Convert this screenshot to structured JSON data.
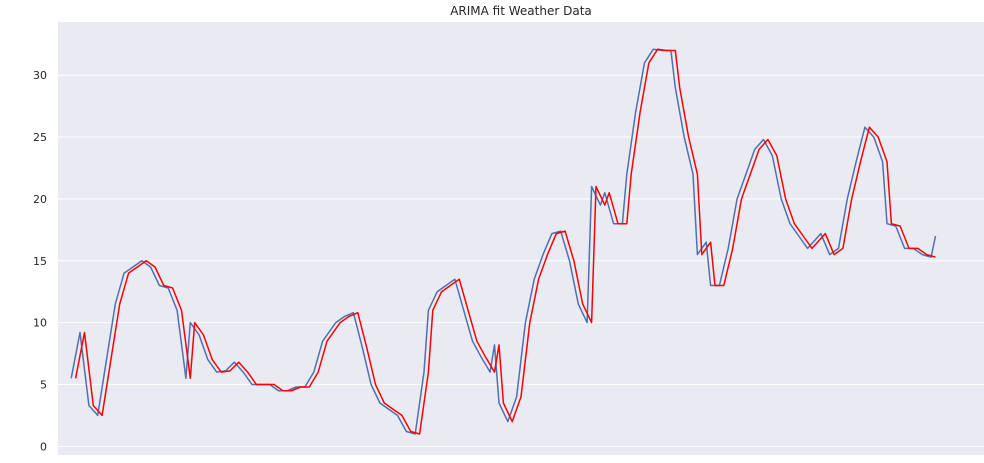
{
  "chart_data": {
    "type": "line",
    "title": "ARIMA fit Weather Data",
    "xlabel": "",
    "ylabel": "",
    "xlim": [
      -3,
      207
    ],
    "ylim": [
      -0.7,
      34.3
    ],
    "yticks": [
      0,
      5,
      10,
      15,
      20,
      25,
      30
    ],
    "grid": "horizontal",
    "background": "#EAEAF2",
    "series": [
      {
        "color": "#4C72B0",
        "x": [
          0,
          2,
          4,
          6,
          8,
          10,
          12,
          14,
          16,
          18,
          20,
          22,
          24,
          26,
          27,
          29,
          31,
          33,
          35,
          37,
          39,
          41,
          43,
          45,
          47,
          49,
          51,
          53,
          55,
          57,
          60,
          62,
          64,
          66,
          68,
          70,
          72,
          74,
          76,
          78,
          80,
          81,
          83,
          85,
          87,
          89,
          91,
          93,
          95,
          96,
          97,
          99,
          101,
          103,
          105,
          107,
          109,
          111,
          113,
          115,
          117,
          118,
          120,
          121,
          123,
          125,
          126,
          128,
          130,
          132,
          134,
          136,
          137,
          139,
          141,
          142,
          144,
          145,
          147,
          149,
          151,
          153,
          155,
          157,
          159,
          161,
          163,
          165,
          167,
          170,
          172,
          174,
          176,
          178,
          180,
          182,
          184,
          185,
          187,
          189,
          191,
          193,
          195,
          196
        ],
        "y": [
          5.5,
          9.2,
          3.3,
          2.5,
          7,
          11.5,
          14,
          14.5,
          15,
          14.5,
          13,
          12.8,
          11,
          5.5,
          10,
          9,
          7,
          6,
          6.1,
          6.8,
          6,
          5,
          5,
          5,
          4.5,
          4.5,
          4.8,
          4.8,
          6,
          8.5,
          10,
          10.5,
          10.8,
          8,
          5,
          3.5,
          3,
          2.5,
          1.2,
          1,
          6,
          11,
          12.5,
          13,
          13.5,
          11,
          8.5,
          7.2,
          6,
          8.2,
          3.5,
          2,
          4,
          10,
          13.5,
          15.5,
          17.2,
          17.4,
          15,
          11.5,
          10,
          21,
          19.5,
          20.5,
          18,
          18,
          22,
          27,
          31,
          32.1,
          32,
          32,
          29,
          25,
          22,
          15.5,
          16.5,
          13,
          13,
          16,
          20,
          22,
          24,
          24.8,
          23.5,
          20,
          18,
          17,
          16,
          17.2,
          15.5,
          16,
          20,
          23,
          25.8,
          25,
          23,
          18,
          17.8,
          16,
          16,
          15.5,
          15.3,
          17
        ]
      },
      {
        "color": "#FF0000",
        "x": [
          1,
          3,
          5,
          7,
          9,
          11,
          13,
          15,
          17,
          19,
          21,
          23,
          25,
          27,
          28,
          30,
          32,
          34,
          36,
          38,
          40,
          42,
          44,
          46,
          48,
          50,
          52,
          54,
          56,
          58,
          61,
          63,
          65,
          67,
          69,
          71,
          73,
          75,
          77,
          79,
          81,
          82,
          84,
          86,
          88,
          90,
          92,
          94,
          96,
          97,
          98,
          100,
          102,
          104,
          106,
          108,
          110,
          112,
          114,
          116,
          118,
          119,
          121,
          122,
          124,
          126,
          127,
          129,
          131,
          133,
          135,
          137,
          138,
          140,
          142,
          143,
          145,
          146,
          148,
          150,
          152,
          154,
          156,
          158,
          160,
          162,
          164,
          166,
          168,
          171,
          173,
          175,
          177,
          179,
          181,
          183,
          185,
          186,
          188,
          190,
          192,
          194,
          196
        ],
        "y": [
          5.5,
          9.2,
          3.3,
          2.5,
          7,
          11.5,
          14,
          14.5,
          15,
          14.5,
          13,
          12.8,
          11,
          5.5,
          10,
          9,
          7,
          6,
          6.1,
          6.8,
          6,
          5,
          5,
          5,
          4.5,
          4.5,
          4.8,
          4.8,
          6,
          8.5,
          10,
          10.5,
          10.8,
          8,
          5,
          3.5,
          3,
          2.5,
          1.2,
          1,
          6,
          11,
          12.5,
          13,
          13.5,
          11,
          8.5,
          7.2,
          6,
          8.2,
          3.5,
          2,
          4,
          10,
          13.5,
          15.5,
          17.2,
          17.4,
          15,
          11.5,
          10,
          21,
          19.5,
          20.5,
          18,
          18,
          22,
          27,
          31,
          32.1,
          32,
          32,
          29,
          25,
          22,
          15.5,
          16.5,
          13,
          13,
          16,
          20,
          22,
          24,
          24.8,
          23.5,
          20,
          18,
          17,
          16,
          17.2,
          15.5,
          16,
          20,
          23,
          25.8,
          25,
          23,
          18,
          17.8,
          16,
          16,
          15.5,
          15.3
        ]
      }
    ]
  }
}
